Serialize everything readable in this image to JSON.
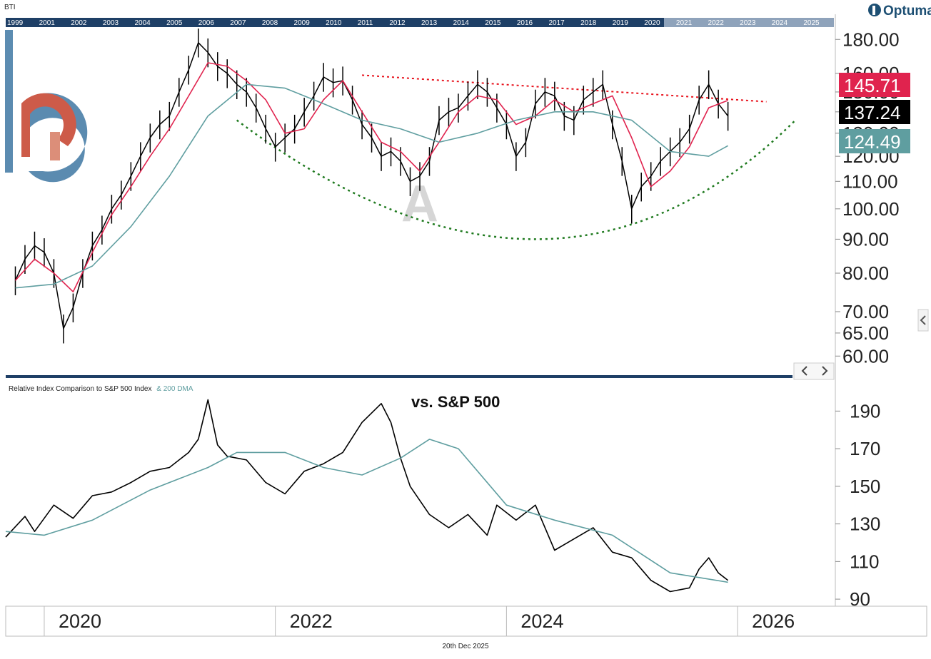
{
  "ticker": "BTI",
  "brand": "Optuma",
  "date_label": "20th Dec 2025",
  "overview_years": [
    "1999",
    "2001",
    "2002",
    "2003",
    "2004",
    "2005",
    "2006",
    "2007",
    "2008",
    "2009",
    "2010",
    "2011",
    "2012",
    "2013",
    "2014",
    "2015",
    "2016",
    "2017",
    "2018",
    "2019",
    "2020",
    "2021",
    "2022",
    "2023",
    "2024",
    "2025"
  ],
  "pattern_label": "A",
  "colors": {
    "price": "#000000",
    "ma_short": "#e0234e",
    "ma_long": "#5f9ea0",
    "resistance": "#e8141e",
    "cup": "#1f7a1f",
    "tag_short": "#e0234e",
    "tag_last": "#000000",
    "tag_long": "#5f9ea0",
    "divider": "#1e3f66"
  },
  "chart_data": [
    {
      "type": "line",
      "title": "BTI",
      "y_scale": "log",
      "ylim": [
        57,
        186
      ],
      "xlim": [
        "2019-09",
        "2026-11"
      ],
      "y_ticks": [
        "60.00",
        "65.00",
        "70.00",
        "80.00",
        "90.00",
        "100.00",
        "110.00",
        "120.00",
        "130.00",
        "140.00",
        "150.00",
        "160.00",
        "180.00"
      ],
      "x_ticks": [
        "2020",
        "2022",
        "2024",
        "2026"
      ],
      "last_values": {
        "ma_short": "145.71",
        "price": "137.24",
        "ma_long": "124.49"
      },
      "series": [
        {
          "key": "price",
          "x": [
            "2019-10",
            "2019-11",
            "2019-12",
            "2020-01",
            "2020-02",
            "2020-03",
            "2020-04",
            "2020-05",
            "2020-06",
            "2020-07",
            "2020-08",
            "2020-09",
            "2020-10",
            "2020-11",
            "2020-12",
            "2021-01",
            "2021-02",
            "2021-03",
            "2021-04",
            "2021-05",
            "2021-06",
            "2021-07",
            "2021-08",
            "2021-09",
            "2021-10",
            "2021-11",
            "2021-12",
            "2022-01",
            "2022-02",
            "2022-03",
            "2022-04",
            "2022-05",
            "2022-06",
            "2022-07",
            "2022-08",
            "2022-09",
            "2022-10",
            "2022-11",
            "2022-12",
            "2023-01",
            "2023-02",
            "2023-03",
            "2023-04",
            "2023-05",
            "2023-06",
            "2023-07",
            "2023-08",
            "2023-09",
            "2023-10",
            "2023-11",
            "2023-12",
            "2024-01",
            "2024-02",
            "2024-03",
            "2024-04",
            "2024-05",
            "2024-06",
            "2024-07",
            "2024-08",
            "2024-09",
            "2024-10",
            "2024-11",
            "2024-12",
            "2025-01",
            "2025-02",
            "2025-03",
            "2025-04",
            "2025-05",
            "2025-06",
            "2025-07",
            "2025-08",
            "2025-09",
            "2025-10",
            "2025-11",
            "2025-12"
          ],
          "y": [
            78,
            84,
            88,
            86,
            80,
            66,
            71,
            80,
            88,
            93,
            100,
            105,
            112,
            120,
            128,
            134,
            138,
            150,
            162,
            178,
            172,
            164,
            160,
            154,
            150,
            142,
            132,
            124,
            128,
            132,
            140,
            148,
            158,
            155,
            156,
            146,
            134,
            128,
            120,
            122,
            118,
            110,
            112,
            118,
            136,
            140,
            142,
            148,
            154,
            150,
            142,
            134,
            120,
            126,
            144,
            150,
            148,
            138,
            136,
            146,
            150,
            154,
            134,
            118,
            100,
            108,
            112,
            118,
            122,
            126,
            132,
            146,
            154,
            144,
            138
          ]
        },
        {
          "key": "ma_short",
          "x": [
            "2019-10",
            "2019-12",
            "2020-02",
            "2020-04",
            "2020-06",
            "2020-08",
            "2020-10",
            "2020-12",
            "2021-02",
            "2021-04",
            "2021-06",
            "2021-08",
            "2021-10",
            "2021-12",
            "2022-02",
            "2022-04",
            "2022-06",
            "2022-08",
            "2022-10",
            "2022-12",
            "2023-02",
            "2023-04",
            "2023-06",
            "2023-08",
            "2023-10",
            "2023-12",
            "2024-02",
            "2024-04",
            "2024-06",
            "2024-08",
            "2024-10",
            "2024-12",
            "2025-02",
            "2025-04",
            "2025-06",
            "2025-08",
            "2025-10",
            "2025-12"
          ],
          "y": [
            78,
            84,
            80,
            75,
            86,
            98,
            108,
            120,
            132,
            148,
            166,
            164,
            156,
            146,
            130,
            132,
            146,
            156,
            140,
            126,
            122,
            114,
            126,
            140,
            148,
            146,
            134,
            138,
            146,
            140,
            144,
            148,
            128,
            108,
            114,
            124,
            142,
            145.71
          ]
        },
        {
          "key": "ma_long",
          "x": [
            "2019-10",
            "2020-02",
            "2020-06",
            "2020-10",
            "2021-02",
            "2021-06",
            "2021-10",
            "2022-02",
            "2022-06",
            "2022-10",
            "2023-02",
            "2023-06",
            "2023-10",
            "2024-02",
            "2024-06",
            "2024-10",
            "2025-02",
            "2025-06",
            "2025-10",
            "2025-12"
          ],
          "y": [
            76,
            77,
            82,
            94,
            112,
            138,
            154,
            152,
            144,
            136,
            132,
            126,
            130,
            136,
            140,
            140,
            136,
            122,
            120,
            124.49
          ]
        }
      ],
      "annotations": [
        {
          "type": "resistance",
          "x": [
            "2022-10",
            "2026-04"
          ],
          "y": [
            159,
            145
          ]
        },
        {
          "type": "cup",
          "x": [
            "2021-09",
            "2024-04",
            "2026-07"
          ],
          "y": [
            136,
            90,
            136
          ]
        }
      ]
    },
    {
      "type": "line",
      "title": "Relative Index Comparison to S&P 500 Index",
      "title_extra": "& 200 DMA",
      "annotation_text": "vs. S&P 500",
      "ylim": [
        87,
        200
      ],
      "xlim": [
        "2019-09",
        "2026-11"
      ],
      "y_ticks": [
        "90",
        "110",
        "130",
        "150",
        "170",
        "190"
      ],
      "x_ticks": [
        "2020",
        "2022",
        "2024",
        "2026"
      ],
      "series": [
        {
          "key": "relative",
          "x": [
            "2019-09",
            "2019-11",
            "2019-12",
            "2020-02",
            "2020-04",
            "2020-06",
            "2020-08",
            "2020-10",
            "2020-12",
            "2021-02",
            "2021-04",
            "2021-05",
            "2021-06",
            "2021-07",
            "2021-08",
            "2021-10",
            "2021-12",
            "2022-02",
            "2022-04",
            "2022-06",
            "2022-08",
            "2022-10",
            "2022-12",
            "2023-01",
            "2023-02",
            "2023-03",
            "2023-05",
            "2023-07",
            "2023-09",
            "2023-11",
            "2023-12",
            "2024-02",
            "2024-04",
            "2024-06",
            "2024-08",
            "2024-10",
            "2024-12",
            "2025-02",
            "2025-04",
            "2025-06",
            "2025-08",
            "2025-09",
            "2025-10",
            "2025-11",
            "2025-12"
          ],
          "y": [
            123,
            134,
            126,
            140,
            133,
            145,
            147,
            152,
            158,
            160,
            168,
            175,
            196,
            172,
            166,
            164,
            152,
            146,
            158,
            162,
            168,
            184,
            194,
            184,
            165,
            150,
            135,
            128,
            135,
            124,
            140,
            132,
            140,
            116,
            122,
            128,
            115,
            112,
            100,
            94,
            96,
            106,
            112,
            104,
            100
          ]
        },
        {
          "key": "relative_ma",
          "x": [
            "2019-09",
            "2020-01",
            "2020-06",
            "2020-12",
            "2021-06",
            "2021-09",
            "2022-02",
            "2022-06",
            "2022-10",
            "2023-02",
            "2023-05",
            "2023-08",
            "2024-01",
            "2024-06",
            "2024-12",
            "2025-06",
            "2025-12"
          ],
          "y": [
            126,
            124,
            132,
            148,
            160,
            168,
            168,
            160,
            156,
            165,
            175,
            170,
            140,
            132,
            124,
            104,
            99
          ]
        }
      ]
    }
  ]
}
